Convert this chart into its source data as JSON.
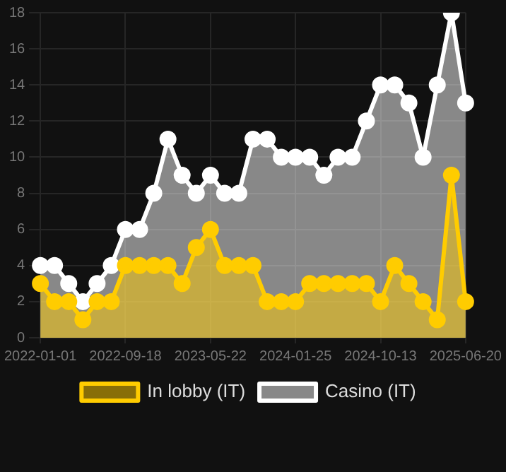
{
  "chart_data": {
    "type": "area",
    "categories": [
      "2022-01-01",
      null,
      null,
      null,
      null,
      null,
      "2022-09-18",
      null,
      null,
      null,
      null,
      null,
      "2023-05-22",
      null,
      null,
      null,
      null,
      null,
      "2024-01-25",
      null,
      null,
      null,
      null,
      null,
      "2024-10-13",
      null,
      null,
      null,
      null,
      null,
      "2025-06-20"
    ],
    "series": [
      {
        "name": "In lobby (IT)",
        "color": "#ffcc00",
        "values": [
          3,
          2,
          2,
          1,
          2,
          2,
          4,
          4,
          4,
          4,
          3,
          5,
          6,
          4,
          4,
          4,
          2,
          2,
          2,
          3,
          3,
          3,
          3,
          3,
          2,
          4,
          3,
          2,
          1,
          9,
          2
        ]
      },
      {
        "name": "Casino (IT)",
        "color": "#ffffff",
        "values": [
          4,
          4,
          3,
          2,
          3,
          4,
          6,
          6,
          8,
          11,
          9,
          8,
          9,
          8,
          8,
          11,
          11,
          10,
          10,
          10,
          9,
          10,
          10,
          12,
          14,
          14,
          13,
          10,
          14,
          18,
          13
        ]
      }
    ],
    "ylim": [
      0,
      18
    ],
    "yticks": [
      0,
      2,
      4,
      6,
      8,
      10,
      12,
      14,
      16,
      18
    ],
    "grid": true,
    "legend": "bottom",
    "marker": "circle"
  }
}
